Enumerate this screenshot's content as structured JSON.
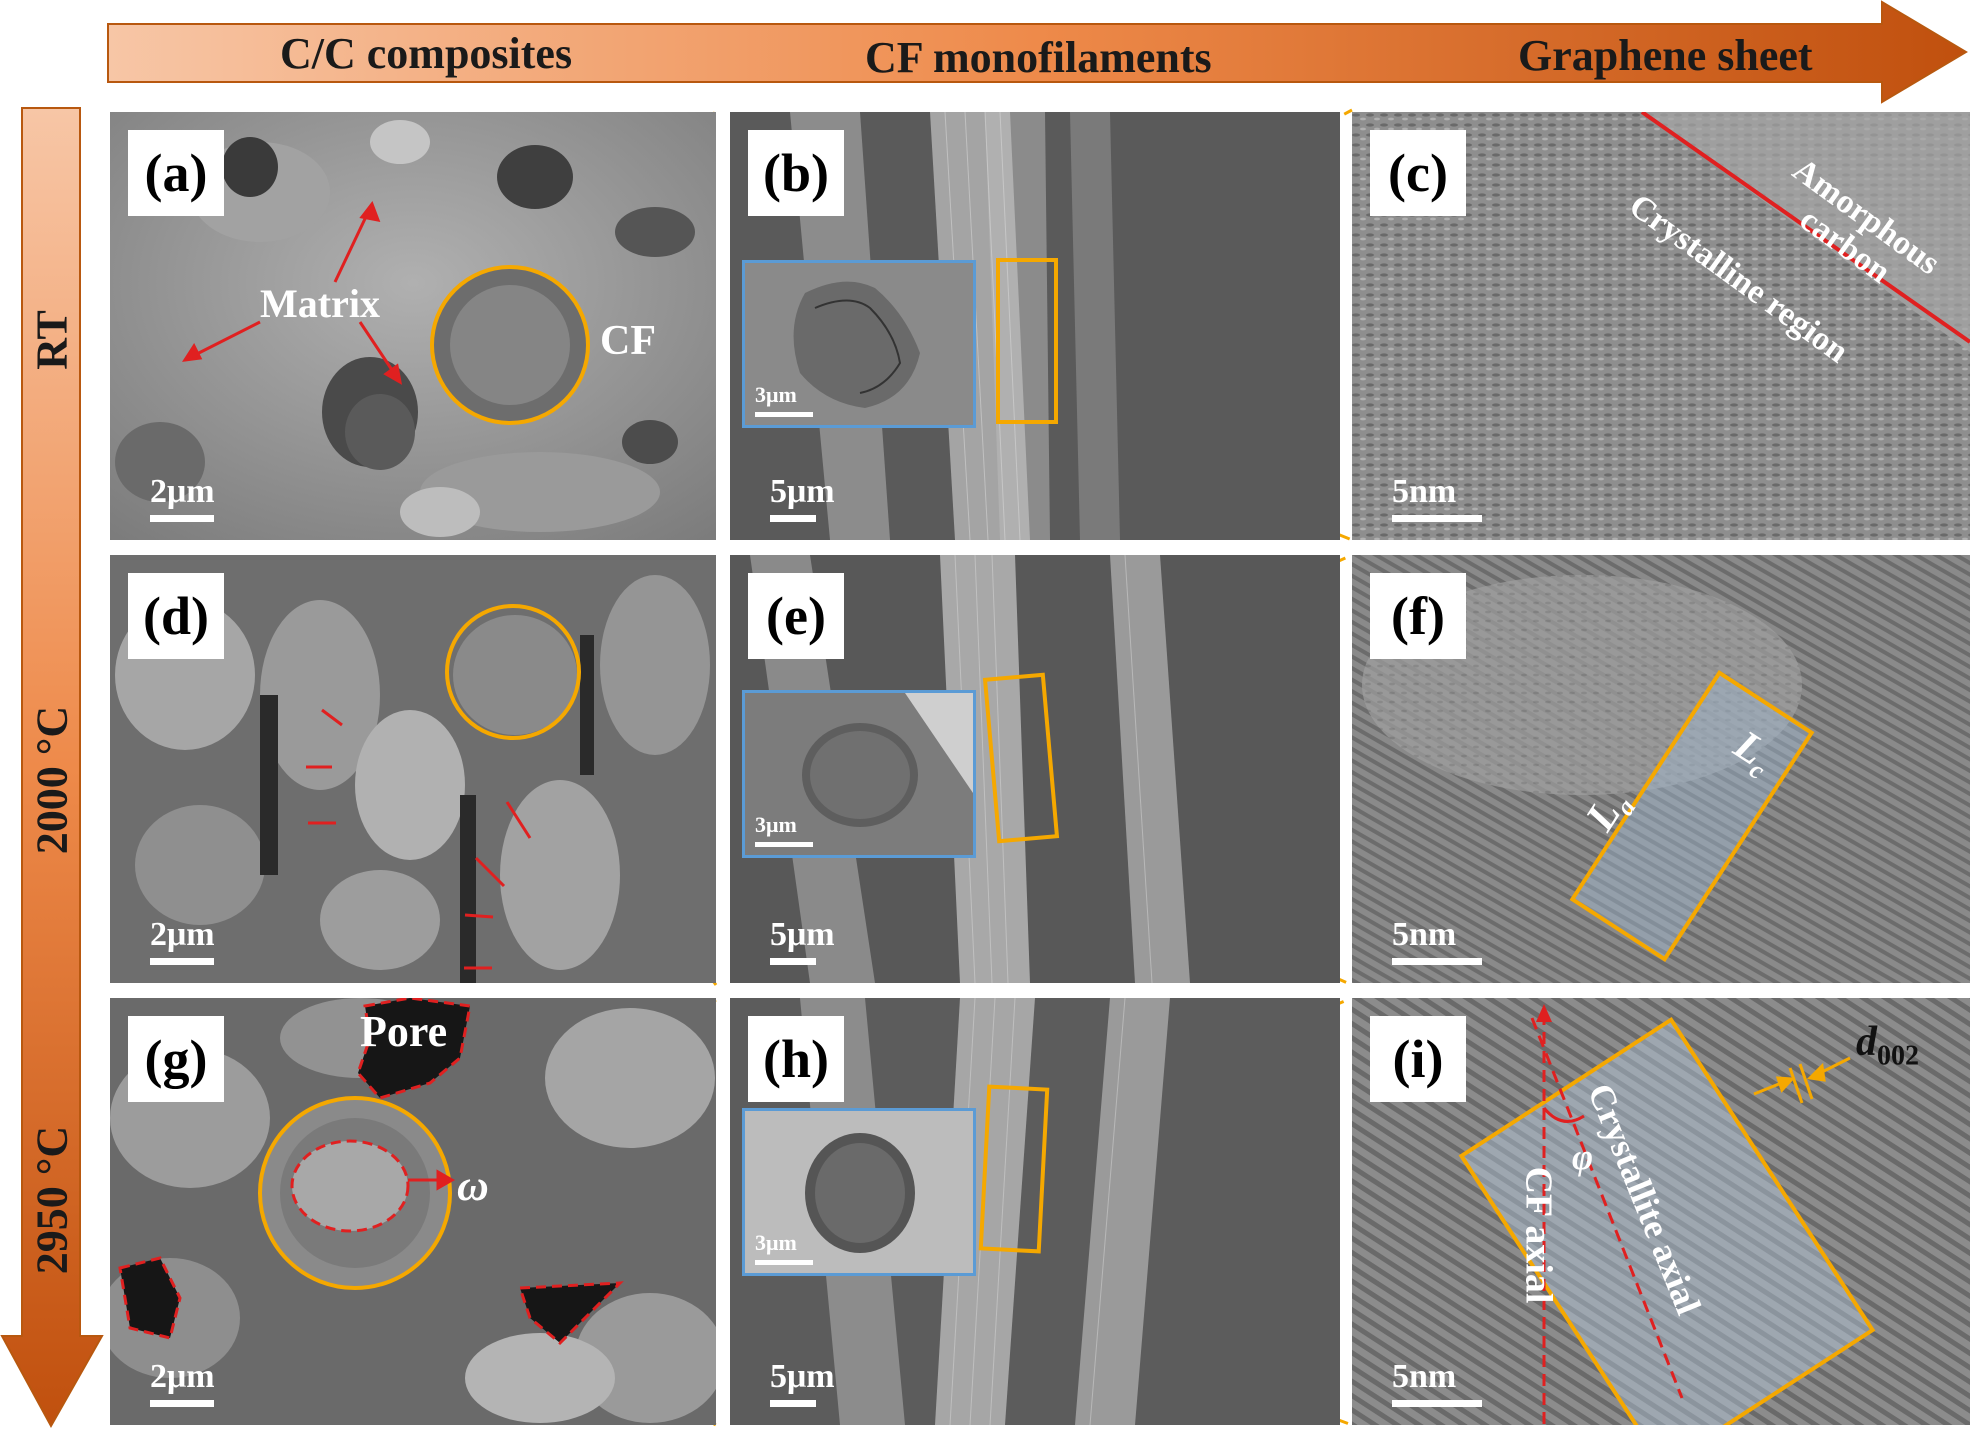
{
  "columns": [
    "C/C composites",
    "CF monofilaments",
    "Graphene sheet"
  ],
  "rows": [
    "RT",
    "2000 °C",
    "2950 °C"
  ],
  "panels": {
    "a": {
      "label": "(a)",
      "scale": "2μm",
      "annotations": {
        "matrix": "Matrix",
        "cf": "CF"
      }
    },
    "b": {
      "label": "(b)",
      "scale": "5μm",
      "inset_scale": "3μm"
    },
    "c": {
      "label": "(c)",
      "scale": "5nm",
      "annotations": {
        "amorphous_1": "Amorphous",
        "amorphous_2": "carbon",
        "crystalline": "Crystalline region"
      }
    },
    "d": {
      "label": "(d)",
      "scale": "2μm"
    },
    "e": {
      "label": "(e)",
      "scale": "5μm",
      "inset_scale": "3μm"
    },
    "f": {
      "label": "(f)",
      "scale": "5nm",
      "annotations": {
        "la": "L",
        "la_sub": "a",
        "lc": "L",
        "lc_sub": "c"
      }
    },
    "g": {
      "label": "(g)",
      "scale": "2μm",
      "annotations": {
        "pore": "Pore",
        "omega": "ω"
      }
    },
    "h": {
      "label": "(h)",
      "scale": "5μm",
      "inset_scale": "3μm"
    },
    "i": {
      "label": "(i)",
      "scale": "5nm",
      "annotations": {
        "d": "d",
        "d_sub": "002",
        "cf_axial": "CF axial",
        "crystallite_axial": "Crystallite axial",
        "phi": "φ"
      }
    }
  },
  "colors": {
    "accent": "#f5a800",
    "arrow": "#e02020",
    "inset_border": "#5b9bd5",
    "header_start": "#f6c2a0",
    "header_end": "#c0500e"
  }
}
